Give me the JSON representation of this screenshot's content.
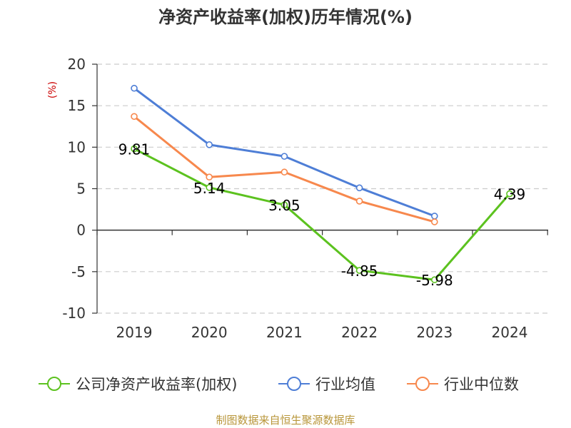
{
  "chart_data": {
    "type": "line",
    "title": "净资产收益率(加权)历年情况(%)",
    "xlabel": "",
    "ylabel": "(%)",
    "ylim": [
      -10,
      20
    ],
    "yticks": [
      20,
      15,
      10,
      5,
      0,
      -5,
      -10
    ],
    "categories": [
      "2019",
      "2020",
      "2021",
      "2022",
      "2023",
      "2024"
    ],
    "grid": true,
    "legend_position": "bottom",
    "series": [
      {
        "name": "公司净资产收益率(加权)",
        "color": "#5cc21f",
        "values": [
          9.81,
          5.14,
          3.05,
          -4.85,
          -5.98,
          4.39
        ],
        "data_labels": [
          "9.81",
          "5.14",
          "3.05",
          "-4.85",
          "-5.98",
          "4.39"
        ]
      },
      {
        "name": "行业均值",
        "color": "#4e7ed6",
        "values": [
          17.1,
          10.3,
          8.9,
          5.1,
          1.7,
          null
        ]
      },
      {
        "name": "行业中位数",
        "color": "#f7884d",
        "values": [
          13.7,
          6.4,
          7.0,
          3.5,
          1.0,
          null
        ]
      }
    ]
  },
  "colors": {
    "ylabel": "#cc0000",
    "axis": "#333333",
    "grid": "#cccccc",
    "source": "#b8963a"
  },
  "source_text": "制图数据来自恒生聚源数据库"
}
